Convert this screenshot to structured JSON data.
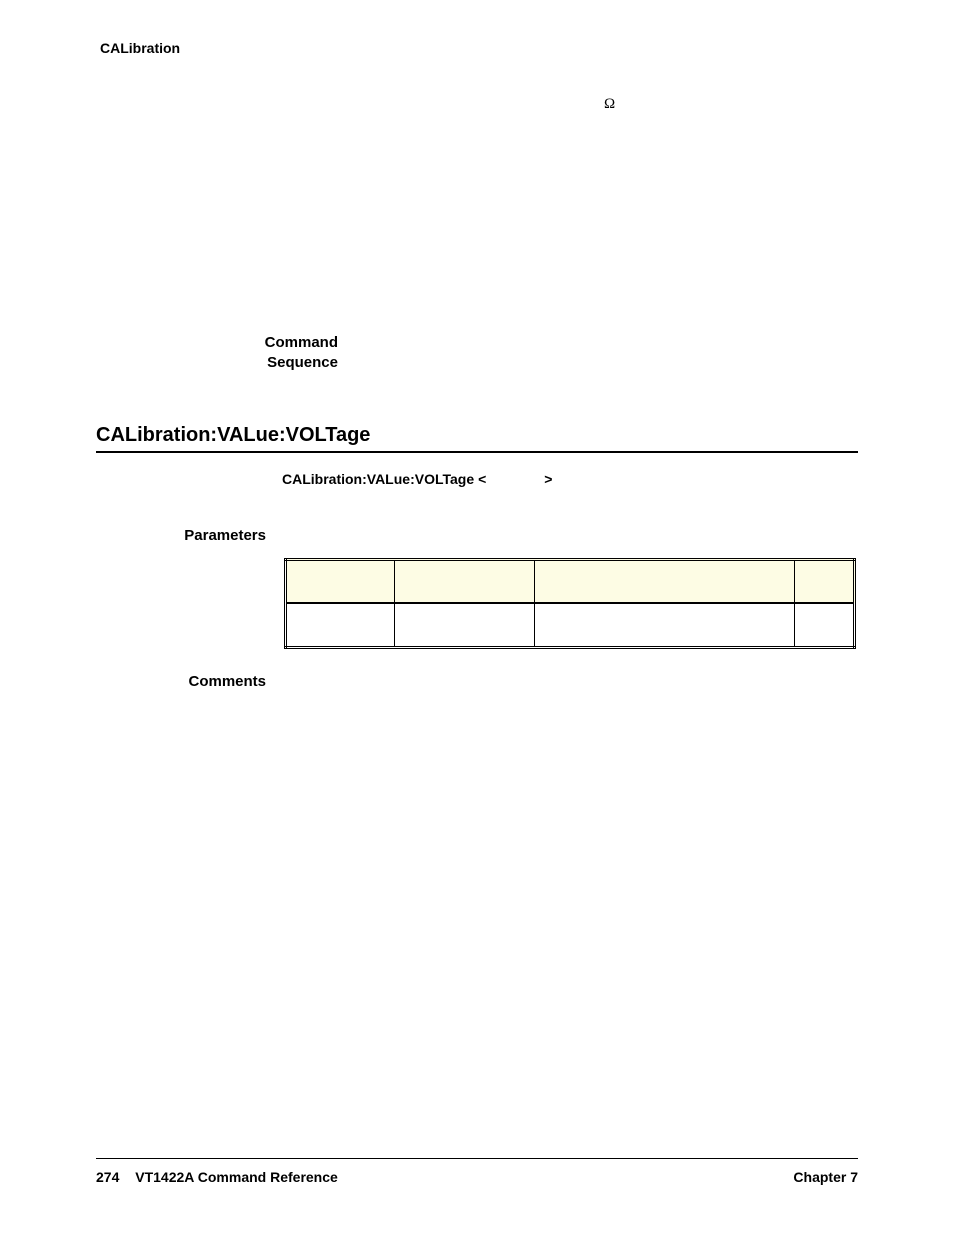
{
  "header": {
    "label": "CALibration"
  },
  "symbols": {
    "omega": "Ω"
  },
  "side_headings": {
    "command_sequence_1": "Command",
    "command_sequence_2": "Sequence",
    "parameters": "Parameters",
    "comments": "Comments"
  },
  "section": {
    "title": "CALibration:VALue:VOLTage",
    "syntax": {
      "cmd": "CALibration:VALue:VOLTage",
      "lt": "<",
      "gt": ">"
    }
  },
  "param_table": {
    "headers": [
      "",
      "",
      "",
      ""
    ],
    "row": [
      "",
      "",
      "",
      ""
    ]
  },
  "footer": {
    "page_number": "274",
    "doc_title": "VT1422A Command Reference",
    "chapter": "Chapter 7"
  },
  "colors": {
    "table_header_bg": "#fdfce4",
    "page_bg": "#ffffff",
    "text": "#000000",
    "rule": "#000000"
  }
}
